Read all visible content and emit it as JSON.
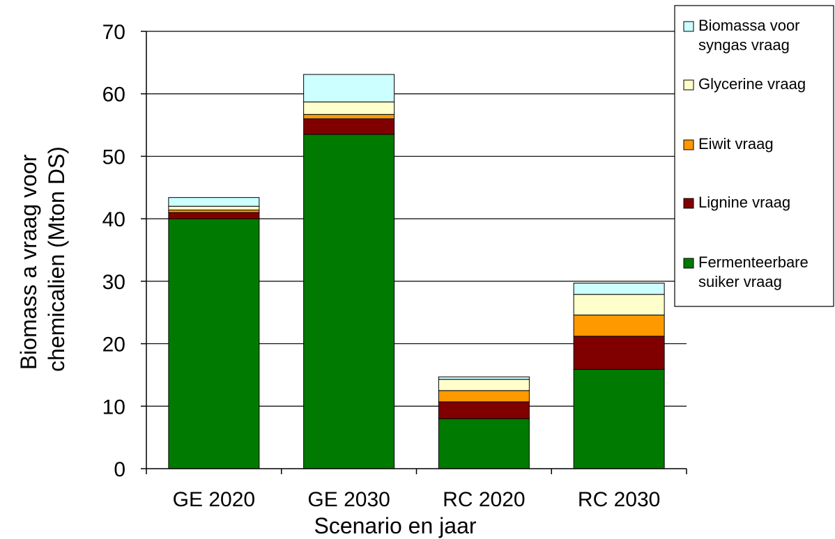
{
  "chart_data": {
    "type": "bar",
    "stacked": true,
    "categories": [
      "GE 2020",
      "GE 2030",
      "RC 2020",
      "RC 2030"
    ],
    "series": [
      {
        "name": "Fermenteerbare suiker vraag",
        "color": "#007a00",
        "values": [
          40.0,
          53.5,
          8.0,
          15.9
        ]
      },
      {
        "name": "Lignine vraag",
        "color": "#800000",
        "values": [
          1.0,
          2.5,
          2.7,
          5.3
        ]
      },
      {
        "name": "Eiwit vraag",
        "color": "#ff9900",
        "values": [
          0.4,
          0.7,
          1.8,
          3.4
        ]
      },
      {
        "name": "Glycerine vraag",
        "color": "#ffffcc",
        "values": [
          0.6,
          2.0,
          1.8,
          3.3
        ]
      },
      {
        "name": "Biomassa voor syngas vraag",
        "color": "#ccffff",
        "values": [
          1.4,
          4.4,
          0.4,
          1.8
        ]
      }
    ],
    "legend_lines": [
      [
        "Biomassa voor",
        "syngas vraag"
      ],
      [
        "Glycerine vraag"
      ],
      [
        "Eiwit vraag"
      ],
      [
        "Lignine vraag"
      ],
      [
        "Fermenteerbare",
        "suiker vraag"
      ]
    ],
    "ylabel_lines": [
      "Biomass a vraag voor",
      "chemicalien  (Mton DS)"
    ],
    "xlabel": "Scenario en jaar",
    "ylim": [
      0,
      70
    ],
    "yticks": [
      "0",
      "10",
      "20",
      "30",
      "40",
      "50",
      "60",
      "70"
    ],
    "grid": true,
    "legend_position": "right"
  }
}
